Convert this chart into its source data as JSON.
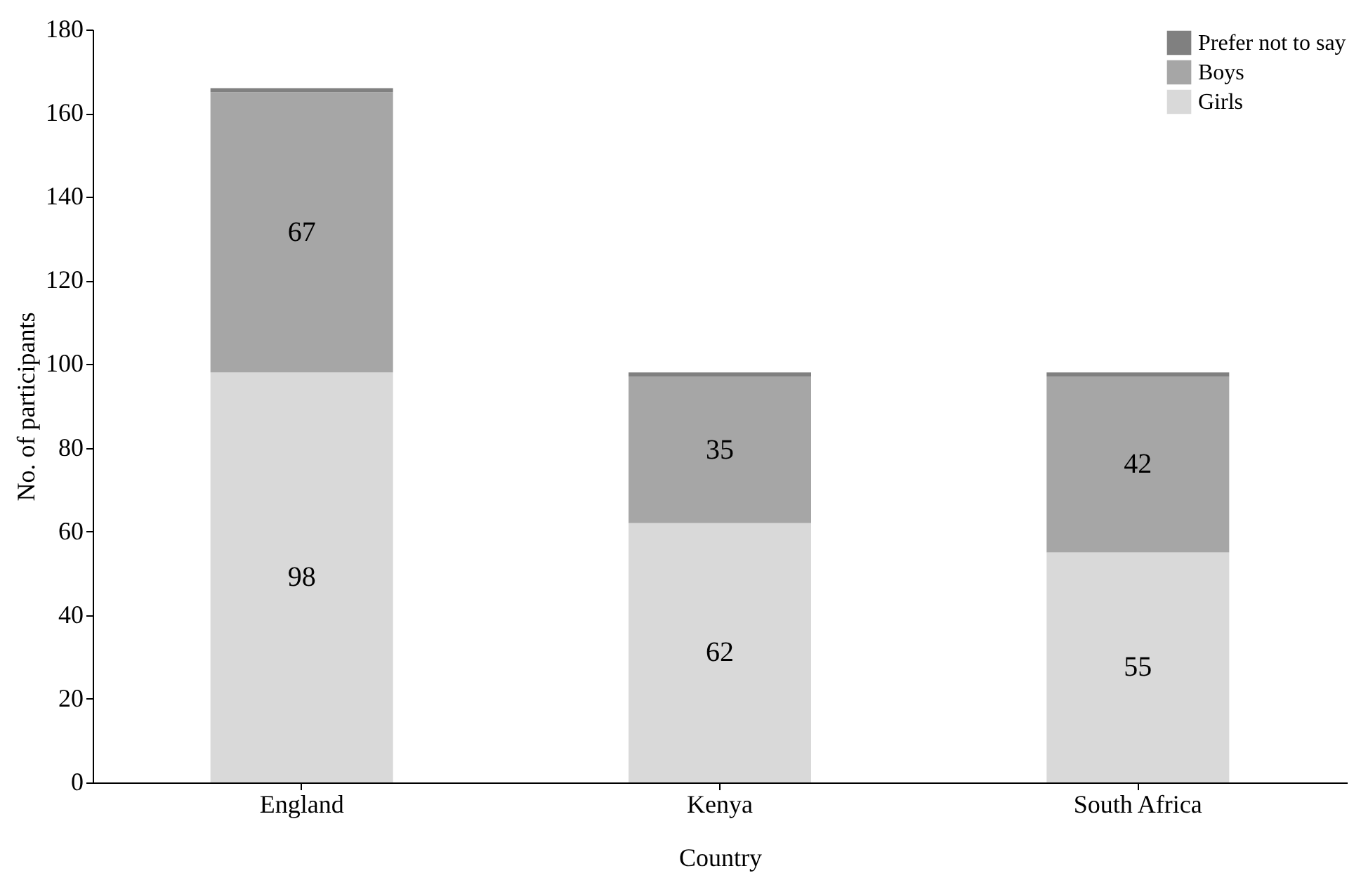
{
  "chart_data": {
    "type": "bar",
    "stacked": true,
    "xlabel": "Country",
    "ylabel": "No. of participants",
    "categories": [
      "England",
      "Kenya",
      "South Africa"
    ],
    "series": [
      {
        "name": "Girls",
        "color": "#d9d9d9",
        "values": [
          98,
          62,
          55
        ],
        "value_labels": [
          "98",
          "62",
          "55"
        ]
      },
      {
        "name": "Boys",
        "color": "#a6a6a6",
        "values": [
          67,
          35,
          42
        ],
        "value_labels": [
          "67",
          "35",
          "42"
        ]
      },
      {
        "name": "Prefer not to say",
        "color": "#808080",
        "values": [
          1,
          1,
          1
        ],
        "value_labels": [
          null,
          null,
          null
        ]
      }
    ],
    "ylim": [
      0,
      180
    ],
    "yticks": [
      0,
      20,
      40,
      60,
      80,
      100,
      120,
      140,
      160,
      180
    ],
    "grid": false,
    "legend": "top right"
  }
}
